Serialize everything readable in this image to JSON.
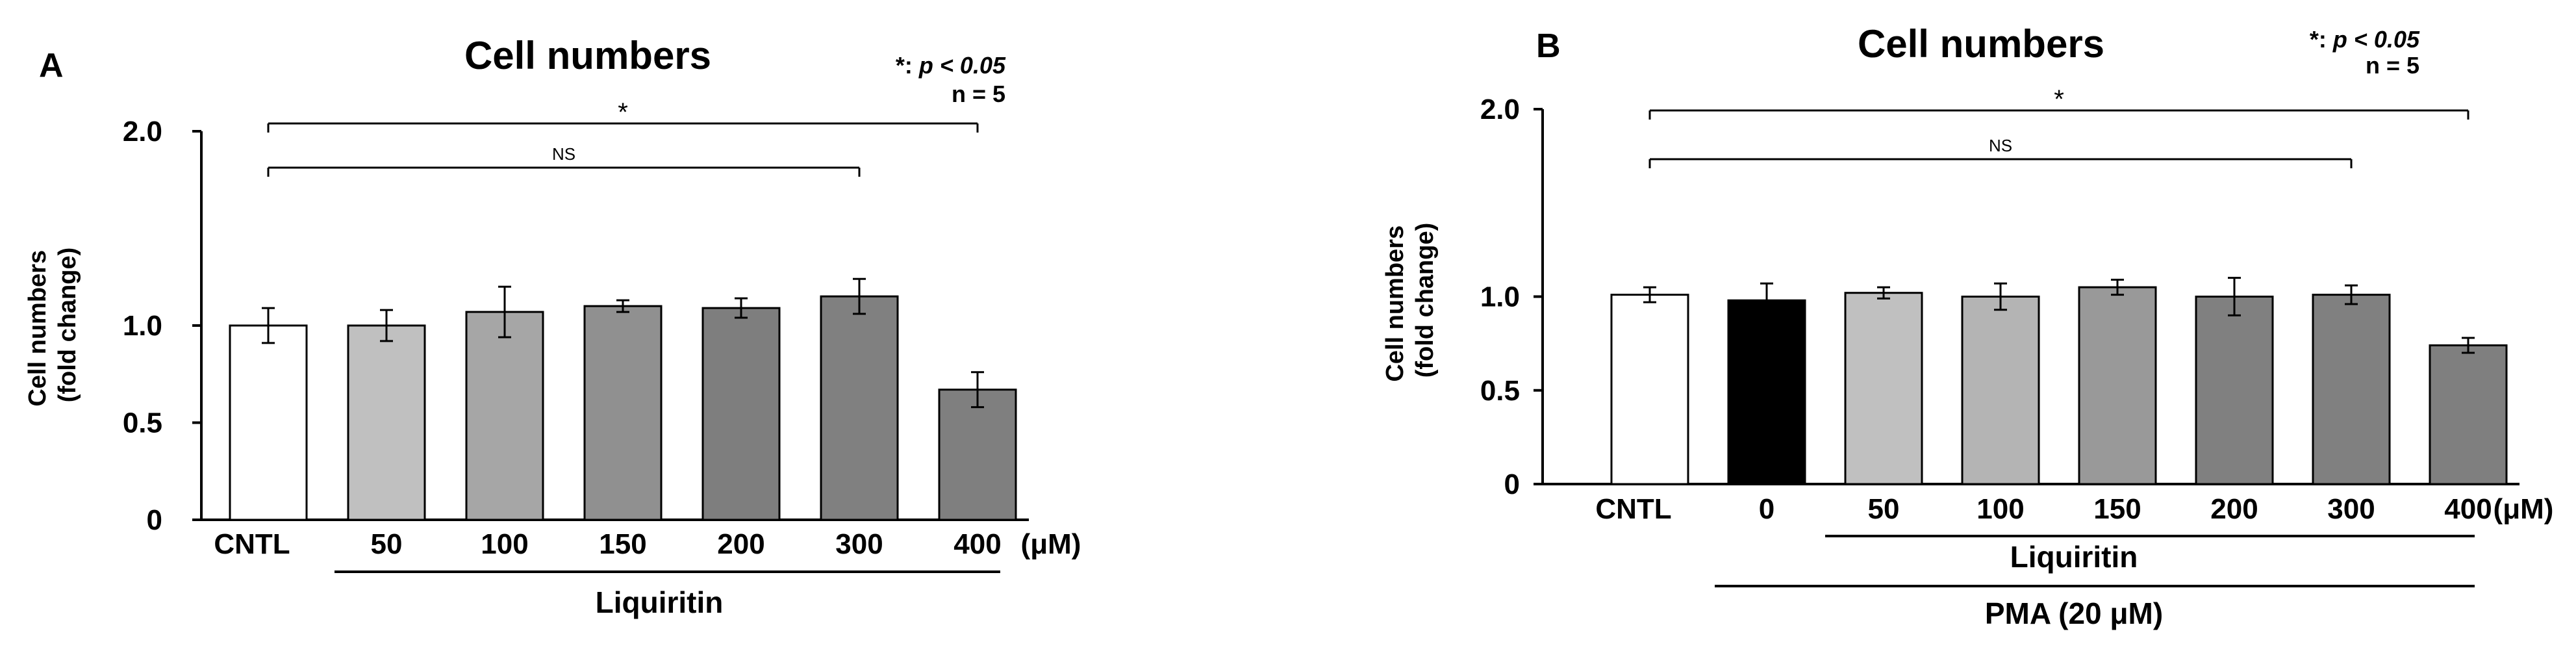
{
  "chart_data": [
    {
      "panel": "A",
      "type": "bar",
      "title": "Cell numbers",
      "ylabel_lines": [
        "Cell numbers",
        "(fold change)"
      ],
      "ylim": [
        0,
        2.0
      ],
      "yticks": [
        {
          "v": 0,
          "label": "0"
        },
        {
          "v": 0.5,
          "label": "0.5"
        },
        {
          "v": 1.0,
          "label": "1.0"
        },
        {
          "v": 2.0,
          "label": "2.0"
        }
      ],
      "categories": [
        "CNTL",
        "50",
        "100",
        "150",
        "200",
        "300",
        "400"
      ],
      "unit": "(μM)",
      "values": [
        1.0,
        1.0,
        1.07,
        1.1,
        1.09,
        1.15,
        0.67
      ],
      "errors": [
        0.09,
        0.08,
        0.13,
        0.03,
        0.05,
        0.09,
        0.09
      ],
      "bar_colors": [
        "#ffffff",
        "#c0c0c0",
        "#a6a6a6",
        "#909090",
        "#7e7e7e",
        "#808080",
        "#7f7f7f"
      ],
      "group_labels": [
        "Liquiritin"
      ],
      "stats_note": {
        "symbol": "*",
        "p_prefix": ": ",
        "p_text": "p < 0.05",
        "n_text": "n = 5"
      },
      "comparisons": [
        {
          "from": "CNTL",
          "to": "400",
          "label": "*"
        },
        {
          "from": "CNTL",
          "to": "300",
          "label": "NS"
        }
      ]
    },
    {
      "panel": "B",
      "type": "bar",
      "title": "Cell numbers",
      "ylabel_lines": [
        "Cell numbers",
        "(fold change)"
      ],
      "ylim": [
        0,
        2.0
      ],
      "yticks": [
        {
          "v": 0,
          "label": "0"
        },
        {
          "v": 0.5,
          "label": "0.5"
        },
        {
          "v": 1.0,
          "label": "1.0"
        },
        {
          "v": 2.0,
          "label": "2.0"
        }
      ],
      "categories": [
        "CNTL",
        "0",
        "50",
        "100",
        "150",
        "200",
        "300",
        "400"
      ],
      "unit": "(μM)",
      "values": [
        1.01,
        0.98,
        1.02,
        1.0,
        1.05,
        1.0,
        1.01,
        0.74
      ],
      "errors": [
        0.04,
        0.09,
        0.03,
        0.07,
        0.04,
        0.1,
        0.05,
        0.04
      ],
      "bar_colors": [
        "#ffffff",
        "#000000",
        "#c0c0c0",
        "#b4b4b4",
        "#999999",
        "#808080",
        "#808080",
        "#7f7f7f"
      ],
      "group_labels": [
        "Liquiritin",
        "PMA (20 μM)"
      ],
      "stats_note": {
        "symbol": "*",
        "p_prefix": ": ",
        "p_text": "p < 0.05",
        "n_text": "n = 5"
      },
      "comparisons": [
        {
          "from": "CNTL",
          "to": "400",
          "label": "*"
        },
        {
          "from": "CNTL",
          "to": "300",
          "label": "NS"
        }
      ]
    }
  ]
}
